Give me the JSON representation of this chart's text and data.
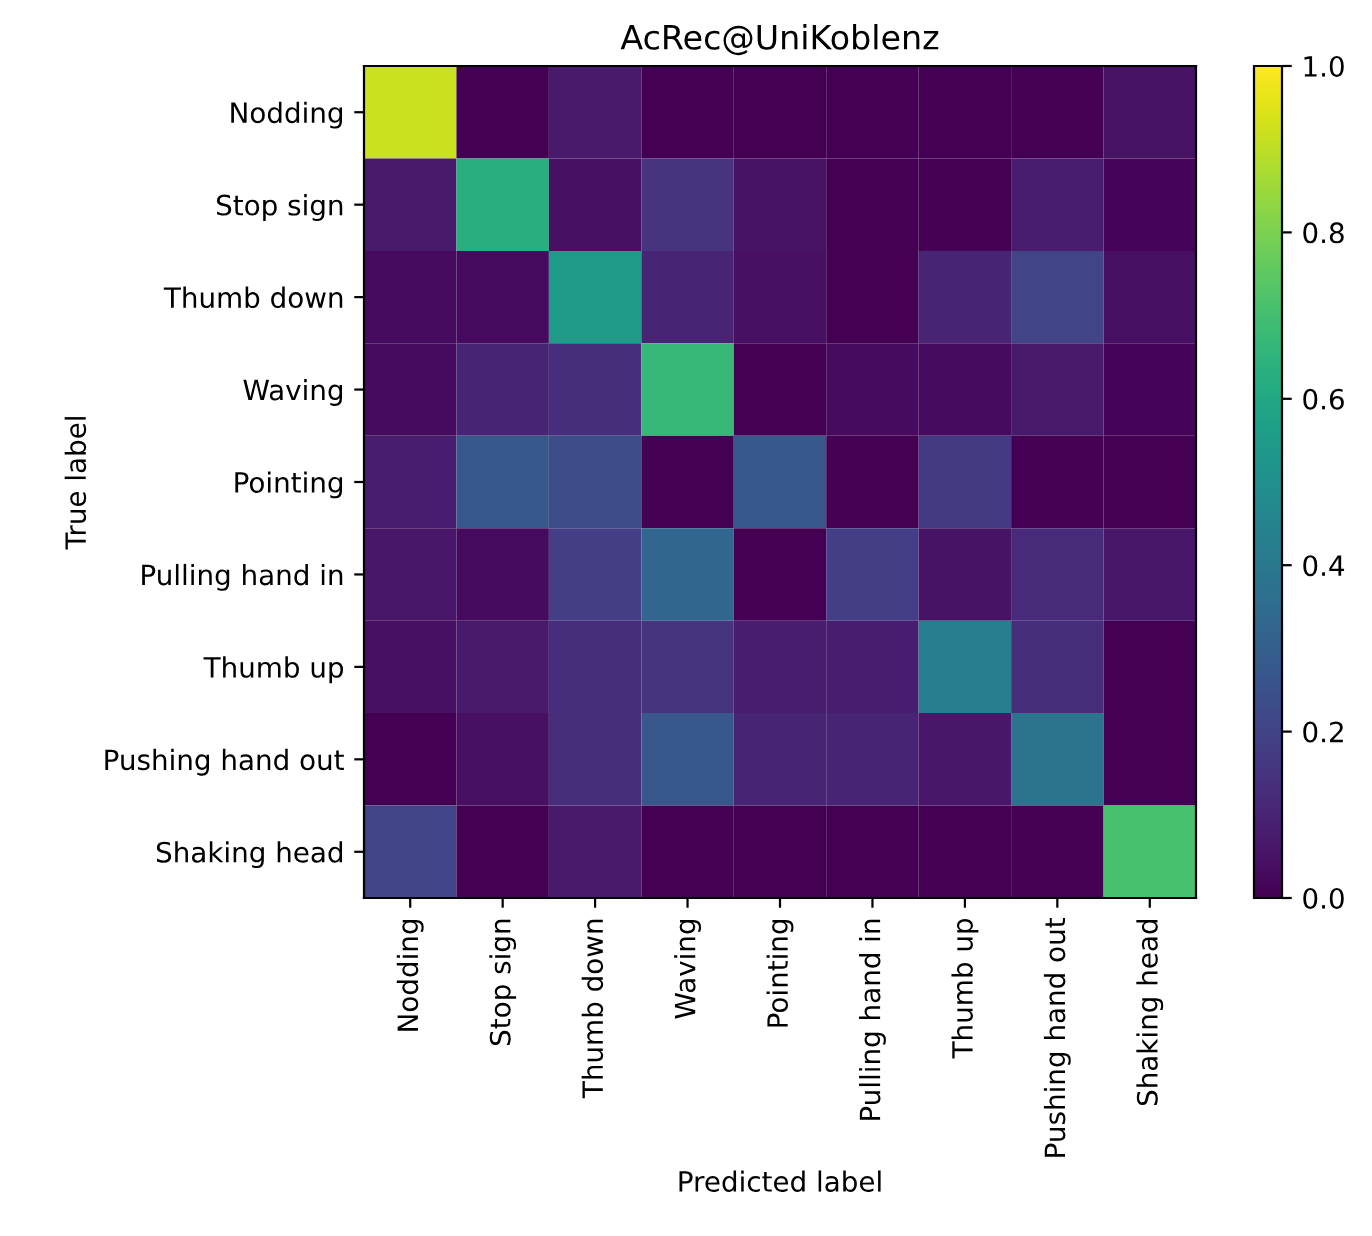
{
  "chart_data": {
    "type": "heatmap",
    "title": "AcRec@UniKoblenz",
    "xlabel": "Predicted label",
    "ylabel": "True label",
    "clim": [
      0,
      1
    ],
    "cticks": [
      {
        "value": 0,
        "label": "0.0"
      },
      {
        "value": 0.2,
        "label": "0.2"
      },
      {
        "value": 0.4,
        "label": "0.4"
      },
      {
        "value": 0.6,
        "label": "0.6"
      },
      {
        "value": 0.8,
        "label": "0.8"
      },
      {
        "value": 1,
        "label": "1.0"
      }
    ],
    "categories": [
      "Nodding",
      "Stop sign",
      "Thumb down",
      "Waving",
      "Pointing",
      "Pulling hand in",
      "Thumb up",
      "Pushing hand out",
      "Shaking head"
    ],
    "y_categories": [
      "Nodding",
      "Stop sign",
      "Thumb down",
      "Waving",
      "Pointing",
      "Pulling hand in",
      "Thumb up",
      "Pushing hand out",
      "Shaking head"
    ],
    "cells": [
      [
        0.92,
        0,
        0.07,
        0,
        0,
        0,
        0,
        0,
        0.05
      ],
      [
        0.07,
        0.63,
        0.04,
        0.15,
        0.05,
        0,
        0,
        0.08,
        0.01
      ],
      [
        0.03,
        0.03,
        0.55,
        0.1,
        0.04,
        0,
        0.1,
        0.2,
        0.04
      ],
      [
        0.03,
        0.1,
        0.13,
        0.67,
        0,
        0.03,
        0.03,
        0.07,
        0.01
      ],
      [
        0.08,
        0.27,
        0.23,
        0,
        0.27,
        0,
        0.17,
        0,
        0
      ],
      [
        0.06,
        0.03,
        0.18,
        0.33,
        0,
        0.18,
        0.05,
        0.12,
        0.06
      ],
      [
        0.04,
        0.07,
        0.13,
        0.15,
        0.08,
        0.08,
        0.42,
        0.13,
        0
      ],
      [
        0,
        0.04,
        0.13,
        0.27,
        0.1,
        0.1,
        0.06,
        0.38,
        0
      ],
      [
        0.2,
        0,
        0.07,
        0,
        0,
        0,
        0,
        0,
        0.71
      ]
    ]
  }
}
